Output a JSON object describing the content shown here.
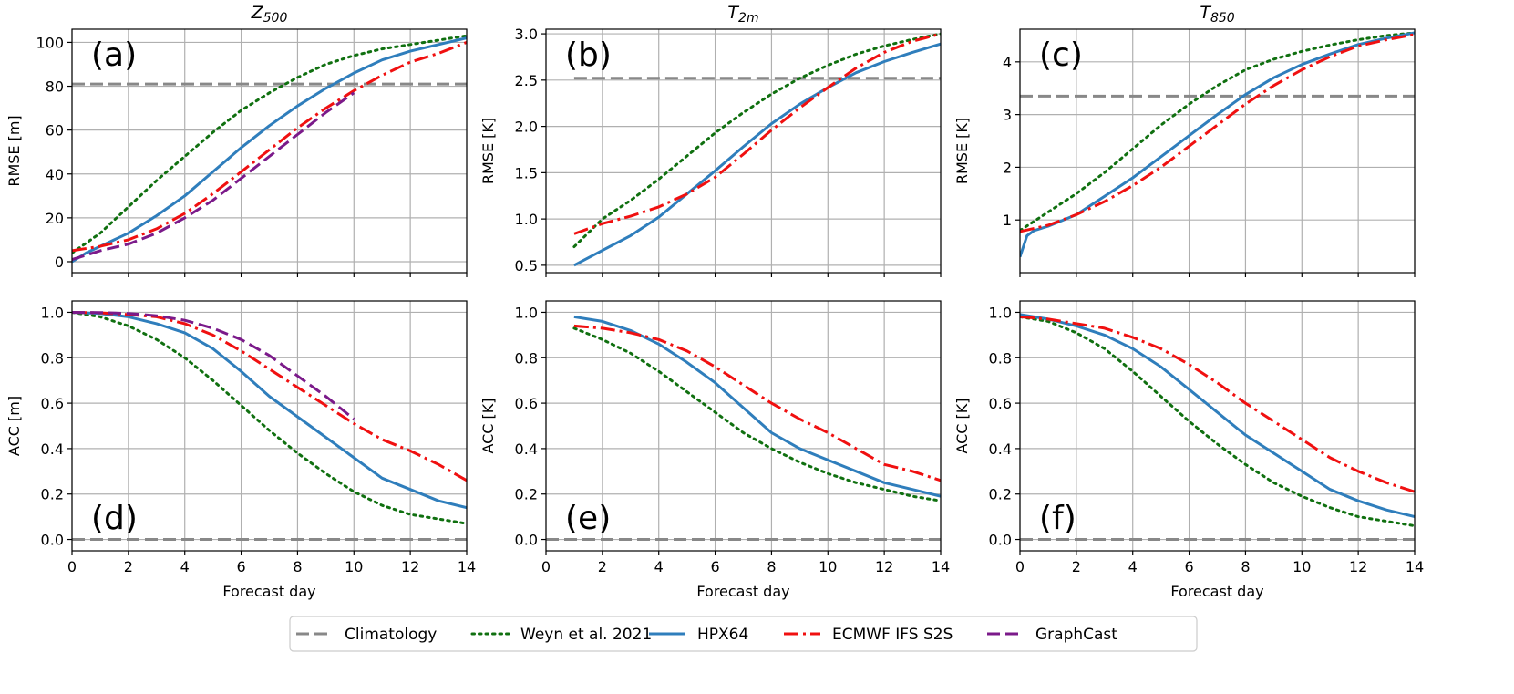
{
  "colors": {
    "climatology": "#888888",
    "weyn": "#107010",
    "hpx64": "#2f7ebc",
    "ecmwf": "#f01010",
    "graphcast": "#7b1a8a"
  },
  "legend": {
    "entries": [
      {
        "key": "climatology",
        "label": "Climatology"
      },
      {
        "key": "weyn",
        "label": "Weyn et al. 2021"
      },
      {
        "key": "hpx64",
        "label": "HPX64"
      },
      {
        "key": "ecmwf",
        "label": "ECMWF IFS S2S"
      },
      {
        "key": "graphcast",
        "label": "GraphCast"
      }
    ]
  },
  "columns": [
    {
      "var": "Z",
      "sub": "500"
    },
    {
      "var": "T",
      "sub": "2m"
    },
    {
      "var": "T",
      "sub": "850"
    }
  ],
  "chart_data": [
    {
      "type": "line",
      "panel": "(a)",
      "ylabel": "RMSE [m]",
      "xlabel": "",
      "xlim": [
        0,
        14
      ],
      "ylim": [
        -5,
        106
      ],
      "xticks": [
        0,
        2,
        4,
        6,
        8,
        10,
        12,
        14
      ],
      "yticks": [
        0,
        20,
        40,
        60,
        80,
        100
      ],
      "ytick_labels": [
        "0",
        "20",
        "40",
        "60",
        "80",
        "100"
      ],
      "grid": true,
      "series": [
        {
          "name": "Climatology",
          "key": "climatology",
          "dash": "dash",
          "x": [
            0,
            14
          ],
          "y": [
            81,
            81
          ]
        },
        {
          "name": "Weyn et al. 2021",
          "key": "weyn",
          "dash": "dot",
          "x": [
            0,
            1,
            2,
            3,
            4,
            5,
            6,
            7,
            8,
            9,
            10,
            11,
            12,
            13,
            14
          ],
          "y": [
            4,
            13,
            25,
            37,
            48,
            59,
            69,
            77,
            84,
            90,
            94,
            97,
            99,
            101,
            103
          ]
        },
        {
          "name": "HPX64",
          "key": "hpx64",
          "dash": "solid",
          "x": [
            0,
            0.5,
            1,
            2,
            3,
            4,
            5,
            6,
            7,
            8,
            9,
            10,
            11,
            12,
            13,
            14
          ],
          "y": [
            0,
            4,
            7,
            13,
            21,
            30,
            41,
            52,
            62,
            71,
            79,
            86,
            92,
            96,
            99,
            102
          ]
        },
        {
          "name": "ECMWF IFS S2S",
          "key": "ecmwf",
          "dash": "dashdot",
          "x": [
            0,
            1,
            2,
            3,
            4,
            5,
            6,
            7,
            8,
            9,
            10,
            11,
            12,
            13,
            14
          ],
          "y": [
            5,
            7,
            10,
            15,
            22,
            31,
            41,
            51,
            61,
            70,
            78,
            85,
            91,
            95,
            100
          ]
        },
        {
          "name": "GraphCast",
          "key": "graphcast",
          "dash": "dash",
          "x": [
            0,
            0.5,
            1,
            2,
            3,
            4,
            5,
            6,
            7,
            8,
            9,
            10
          ],
          "y": [
            1,
            3,
            5,
            8,
            13,
            20,
            28,
            38,
            48,
            58,
            68,
            77
          ]
        }
      ]
    },
    {
      "type": "line",
      "panel": "(b)",
      "ylabel": "RMSE [K]",
      "xlabel": "",
      "xlim": [
        0,
        14
      ],
      "ylim": [
        0.42,
        3.05
      ],
      "xticks": [
        0,
        2,
        4,
        6,
        8,
        10,
        12,
        14
      ],
      "yticks": [
        0.5,
        1.0,
        1.5,
        2.0,
        2.5,
        3.0
      ],
      "ytick_labels": [
        "0.5",
        "1.0",
        "1.5",
        "2.0",
        "2.5",
        "3.0"
      ],
      "grid": true,
      "series": [
        {
          "name": "Climatology",
          "key": "climatology",
          "dash": "dash",
          "x": [
            1,
            14
          ],
          "y": [
            2.52,
            2.52
          ]
        },
        {
          "name": "Weyn et al. 2021",
          "key": "weyn",
          "dash": "dot",
          "x": [
            1,
            2,
            3,
            4,
            5,
            6,
            7,
            8,
            9,
            10,
            11,
            12,
            13,
            14
          ],
          "y": [
            0.7,
            1.0,
            1.2,
            1.43,
            1.68,
            1.93,
            2.15,
            2.35,
            2.52,
            2.66,
            2.78,
            2.87,
            2.94,
            3.0
          ]
        },
        {
          "name": "HPX64",
          "key": "hpx64",
          "dash": "solid",
          "x": [
            1,
            2,
            3,
            4,
            5,
            6,
            7,
            8,
            9,
            10,
            11,
            12,
            13,
            14
          ],
          "y": [
            0.5,
            0.66,
            0.82,
            1.02,
            1.27,
            1.52,
            1.78,
            2.03,
            2.24,
            2.42,
            2.58,
            2.7,
            2.8,
            2.89
          ]
        },
        {
          "name": "ECMWF IFS S2S",
          "key": "ecmwf",
          "dash": "dashdot",
          "x": [
            1,
            2,
            3,
            4,
            5,
            6,
            7,
            8,
            9,
            10,
            11,
            12,
            13,
            14
          ],
          "y": [
            0.84,
            0.95,
            1.03,
            1.13,
            1.27,
            1.45,
            1.7,
            1.96,
            2.2,
            2.42,
            2.63,
            2.8,
            2.92,
            3.0
          ]
        }
      ]
    },
    {
      "type": "line",
      "panel": "(c)",
      "ylabel": "RMSE [K]",
      "xlabel": "",
      "xlim": [
        0,
        14
      ],
      "ylim": [
        0.0,
        4.62
      ],
      "xticks": [
        0,
        2,
        4,
        6,
        8,
        10,
        12,
        14
      ],
      "yticks": [
        1,
        2,
        3,
        4
      ],
      "ytick_labels": [
        "1",
        "2",
        "3",
        "4"
      ],
      "grid": true,
      "series": [
        {
          "name": "Climatology",
          "key": "climatology",
          "dash": "dash",
          "x": [
            0,
            14
          ],
          "y": [
            3.35,
            3.35
          ]
        },
        {
          "name": "Weyn et al. 2021",
          "key": "weyn",
          "dash": "dot",
          "x": [
            0,
            1,
            2,
            3,
            4,
            5,
            6,
            7,
            8,
            9,
            10,
            11,
            12,
            13,
            14
          ],
          "y": [
            0.8,
            1.15,
            1.5,
            1.9,
            2.35,
            2.8,
            3.2,
            3.55,
            3.85,
            4.05,
            4.2,
            4.32,
            4.42,
            4.5,
            4.55
          ]
        },
        {
          "name": "HPX64",
          "key": "hpx64",
          "dash": "solid",
          "x": [
            0,
            0.25,
            0.5,
            1,
            2,
            3,
            4,
            5,
            6,
            7,
            8,
            9,
            10,
            11,
            12,
            13,
            14
          ],
          "y": [
            0.3,
            0.7,
            0.8,
            0.88,
            1.1,
            1.45,
            1.8,
            2.2,
            2.6,
            3.0,
            3.38,
            3.7,
            3.95,
            4.15,
            4.33,
            4.45,
            4.55
          ]
        },
        {
          "name": "ECMWF IFS S2S",
          "key": "ecmwf",
          "dash": "dashdot",
          "x": [
            0,
            1,
            2,
            3,
            4,
            5,
            6,
            7,
            8,
            9,
            10,
            11,
            12,
            13,
            14
          ],
          "y": [
            0.78,
            0.9,
            1.1,
            1.35,
            1.65,
            2.0,
            2.4,
            2.8,
            3.2,
            3.55,
            3.85,
            4.1,
            4.3,
            4.42,
            4.52
          ]
        }
      ]
    },
    {
      "type": "line",
      "panel": "(d)",
      "ylabel": "ACC [m]",
      "xlabel": "Forecast day",
      "xlim": [
        0,
        14
      ],
      "ylim": [
        -0.05,
        1.05
      ],
      "xticks": [
        0,
        2,
        4,
        6,
        8,
        10,
        12,
        14
      ],
      "yticks": [
        0.0,
        0.2,
        0.4,
        0.6,
        0.8,
        1.0
      ],
      "ytick_labels": [
        "0.0",
        "0.2",
        "0.4",
        "0.6",
        "0.8",
        "1.0"
      ],
      "grid": true,
      "series": [
        {
          "name": "Climatology",
          "key": "climatology",
          "dash": "dash",
          "x": [
            0,
            14
          ],
          "y": [
            0,
            0
          ]
        },
        {
          "name": "Weyn et al. 2021",
          "key": "weyn",
          "dash": "dot",
          "x": [
            0,
            1,
            2,
            3,
            4,
            5,
            6,
            7,
            8,
            9,
            10,
            11,
            12,
            13,
            14
          ],
          "y": [
            1.0,
            0.98,
            0.94,
            0.88,
            0.8,
            0.7,
            0.59,
            0.48,
            0.38,
            0.29,
            0.21,
            0.15,
            0.11,
            0.09,
            0.07
          ]
        },
        {
          "name": "HPX64",
          "key": "hpx64",
          "dash": "solid",
          "x": [
            0,
            1,
            2,
            3,
            4,
            5,
            6,
            7,
            8,
            9,
            10,
            11,
            12,
            13,
            14
          ],
          "y": [
            1.0,
            0.995,
            0.98,
            0.95,
            0.91,
            0.84,
            0.74,
            0.63,
            0.54,
            0.45,
            0.36,
            0.27,
            0.22,
            0.17,
            0.14
          ]
        },
        {
          "name": "ECMWF IFS S2S",
          "key": "ecmwf",
          "dash": "dashdot",
          "x": [
            0,
            1,
            2,
            3,
            4,
            5,
            6,
            7,
            8,
            9,
            10,
            11,
            12,
            13,
            14
          ],
          "y": [
            1.0,
            0.998,
            0.99,
            0.98,
            0.95,
            0.9,
            0.83,
            0.75,
            0.67,
            0.59,
            0.51,
            0.44,
            0.39,
            0.33,
            0.26
          ]
        },
        {
          "name": "GraphCast",
          "key": "graphcast",
          "dash": "dash",
          "x": [
            0,
            1,
            2,
            3,
            4,
            5,
            6,
            7,
            8,
            9,
            10
          ],
          "y": [
            1.0,
            0.999,
            0.995,
            0.985,
            0.965,
            0.93,
            0.88,
            0.81,
            0.72,
            0.63,
            0.53
          ]
        }
      ]
    },
    {
      "type": "line",
      "panel": "(e)",
      "ylabel": "ACC [K]",
      "xlabel": "Forecast day",
      "xlim": [
        0,
        14
      ],
      "ylim": [
        -0.05,
        1.05
      ],
      "xticks": [
        0,
        2,
        4,
        6,
        8,
        10,
        12,
        14
      ],
      "yticks": [
        0.0,
        0.2,
        0.4,
        0.6,
        0.8,
        1.0
      ],
      "ytick_labels": [
        "0.0",
        "0.2",
        "0.4",
        "0.6",
        "0.8",
        "1.0"
      ],
      "grid": true,
      "series": [
        {
          "name": "Climatology",
          "key": "climatology",
          "dash": "dash",
          "x": [
            0,
            14
          ],
          "y": [
            0,
            0
          ]
        },
        {
          "name": "Weyn et al. 2021",
          "key": "weyn",
          "dash": "dot",
          "x": [
            1,
            2,
            3,
            4,
            5,
            6,
            7,
            8,
            9,
            10,
            11,
            12,
            13,
            14
          ],
          "y": [
            0.93,
            0.88,
            0.82,
            0.74,
            0.65,
            0.56,
            0.47,
            0.4,
            0.34,
            0.29,
            0.25,
            0.22,
            0.19,
            0.17
          ]
        },
        {
          "name": "HPX64",
          "key": "hpx64",
          "dash": "solid",
          "x": [
            1,
            2,
            3,
            4,
            5,
            6,
            7,
            8,
            9,
            10,
            11,
            12,
            13,
            14
          ],
          "y": [
            0.98,
            0.96,
            0.92,
            0.86,
            0.78,
            0.69,
            0.58,
            0.47,
            0.4,
            0.35,
            0.3,
            0.25,
            0.22,
            0.19
          ]
        },
        {
          "name": "ECMWF IFS S2S",
          "key": "ecmwf",
          "dash": "dashdot",
          "x": [
            1,
            2,
            3,
            4,
            5,
            6,
            7,
            8,
            9,
            10,
            11,
            12,
            13,
            14
          ],
          "y": [
            0.94,
            0.93,
            0.91,
            0.88,
            0.83,
            0.76,
            0.68,
            0.6,
            0.53,
            0.47,
            0.4,
            0.33,
            0.3,
            0.26
          ]
        }
      ]
    },
    {
      "type": "line",
      "panel": "(f)",
      "ylabel": "ACC [K]",
      "xlabel": "Forecast day",
      "xlim": [
        0,
        14
      ],
      "ylim": [
        -0.05,
        1.05
      ],
      "xticks": [
        0,
        2,
        4,
        6,
        8,
        10,
        12,
        14
      ],
      "yticks": [
        0.0,
        0.2,
        0.4,
        0.6,
        0.8,
        1.0
      ],
      "ytick_labels": [
        "0.0",
        "0.2",
        "0.4",
        "0.6",
        "0.8",
        "1.0"
      ],
      "grid": true,
      "series": [
        {
          "name": "Climatology",
          "key": "climatology",
          "dash": "dash",
          "x": [
            0,
            14
          ],
          "y": [
            0,
            0
          ]
        },
        {
          "name": "Weyn et al. 2021",
          "key": "weyn",
          "dash": "dot",
          "x": [
            0,
            1,
            2,
            3,
            4,
            5,
            6,
            7,
            8,
            9,
            10,
            11,
            12,
            13,
            14
          ],
          "y": [
            0.98,
            0.96,
            0.91,
            0.84,
            0.74,
            0.63,
            0.52,
            0.42,
            0.33,
            0.25,
            0.19,
            0.14,
            0.1,
            0.08,
            0.06
          ]
        },
        {
          "name": "HPX64",
          "key": "hpx64",
          "dash": "solid",
          "x": [
            0,
            1,
            2,
            3,
            4,
            5,
            6,
            7,
            8,
            9,
            10,
            11,
            12,
            13,
            14
          ],
          "y": [
            0.99,
            0.97,
            0.94,
            0.9,
            0.84,
            0.76,
            0.66,
            0.56,
            0.46,
            0.38,
            0.3,
            0.22,
            0.17,
            0.13,
            0.1
          ]
        },
        {
          "name": "ECMWF IFS S2S",
          "key": "ecmwf",
          "dash": "dashdot",
          "x": [
            0,
            1,
            2,
            3,
            4,
            5,
            6,
            7,
            8,
            9,
            10,
            11,
            12,
            13,
            14
          ],
          "y": [
            0.98,
            0.97,
            0.95,
            0.93,
            0.89,
            0.84,
            0.77,
            0.69,
            0.6,
            0.52,
            0.44,
            0.36,
            0.3,
            0.25,
            0.21
          ]
        }
      ]
    }
  ]
}
